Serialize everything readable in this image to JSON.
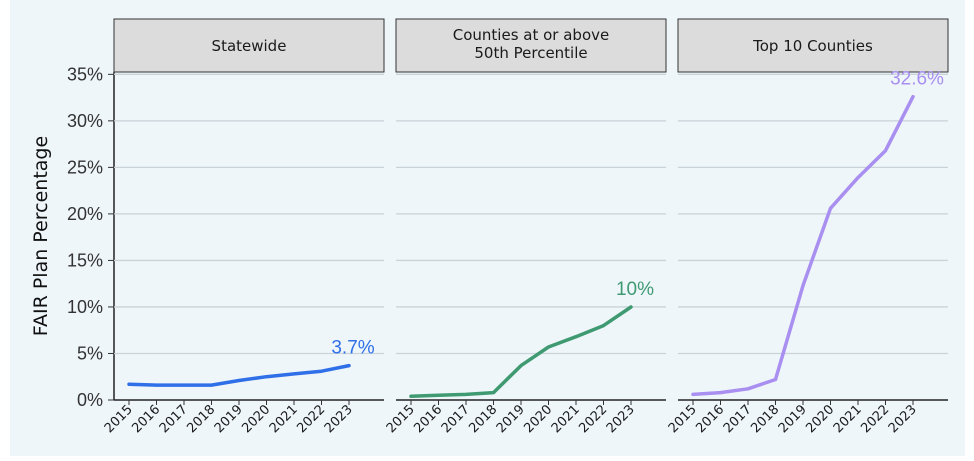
{
  "chart_data": {
    "type": "line",
    "ylabel": "FAIR Plan Percentage",
    "ylim": [
      0,
      35
    ],
    "yticks": [
      0,
      5,
      10,
      15,
      20,
      25,
      30,
      35
    ],
    "ytick_labels": [
      "0%",
      "5%",
      "10%",
      "15%",
      "20%",
      "25%",
      "30%",
      "35%"
    ],
    "x": [
      "2015",
      "2016",
      "2017",
      "2018",
      "2019",
      "2020",
      "2021",
      "2022",
      "2023"
    ],
    "grid": "horizontal",
    "panels": [
      {
        "title": "Statewide",
        "color": "#2f6fe8",
        "values": [
          1.7,
          1.6,
          1.6,
          1.6,
          2.1,
          2.5,
          2.8,
          3.1,
          3.7
        ],
        "end_label": "3.7%"
      },
      {
        "title": "Counties at or above\n50th Percentile",
        "color": "#3f9a72",
        "values": [
          0.4,
          0.5,
          0.6,
          0.8,
          3.7,
          5.7,
          6.8,
          8.0,
          10.0
        ],
        "end_label": "10%"
      },
      {
        "title": "Top 10 Counties",
        "color": "#a98ff0",
        "values": [
          0.6,
          0.8,
          1.2,
          2.2,
          12.3,
          20.6,
          23.9,
          26.8,
          32.6
        ],
        "end_label": "32.6%"
      }
    ]
  },
  "colors": {
    "panel_background": "#eef6fa",
    "strip_fill": "#dcdcdc",
    "grid": "#c9d3d8"
  }
}
